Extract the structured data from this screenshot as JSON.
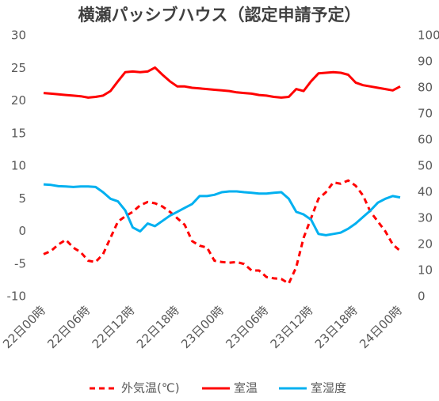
{
  "chart_data": {
    "type": "line",
    "title": "横瀬パッシブハウス（認定申請予定）",
    "categories": [
      "22日00時",
      null,
      null,
      null,
      null,
      null,
      "22日06時",
      null,
      null,
      null,
      null,
      null,
      "22日12時",
      null,
      null,
      null,
      null,
      null,
      "22日18時",
      null,
      null,
      null,
      null,
      null,
      "23日00時",
      null,
      null,
      null,
      null,
      null,
      "23日06時",
      null,
      null,
      null,
      null,
      null,
      "23日12時",
      null,
      null,
      null,
      null,
      null,
      "23日18時",
      null,
      null,
      null,
      null,
      null,
      "24日00時"
    ],
    "series": [
      {
        "name": "外気温(℃)",
        "color": "#ff0000",
        "style": "dashed",
        "axis": "y",
        "values": [
          -3.5,
          -3,
          -2,
          -1.3,
          -2.5,
          -3.2,
          -4.5,
          -4.7,
          -3.5,
          -1,
          1.5,
          2.3,
          3,
          4,
          4.5,
          4.3,
          3.8,
          3,
          2,
          1,
          -1.5,
          -2.2,
          -2.5,
          -4.5,
          -4.7,
          -4.8,
          -4.7,
          -5,
          -6,
          -6,
          -7,
          -7.2,
          -7.3,
          -8,
          -5.5,
          -1,
          2,
          5,
          6,
          7.5,
          7.3,
          7.8,
          7,
          5.5,
          3,
          1.5,
          0,
          -2,
          -3
        ]
      },
      {
        "name": "室温",
        "color": "#ff0000",
        "style": "solid",
        "axis": "y",
        "values": [
          21.2,
          21.1,
          21,
          20.9,
          20.8,
          20.7,
          20.5,
          20.6,
          20.8,
          21.5,
          23,
          24.4,
          24.5,
          24.4,
          24.5,
          25.1,
          24,
          23,
          22.2,
          22.2,
          22,
          21.9,
          21.8,
          21.7,
          21.6,
          21.5,
          21.3,
          21.2,
          21.1,
          20.9,
          20.8,
          20.6,
          20.5,
          20.6,
          21.8,
          21.5,
          23,
          24.2,
          24.3,
          24.4,
          24.3,
          24,
          22.8,
          22.4,
          22.2,
          22,
          21.8,
          21.6,
          22.2
        ]
      },
      {
        "name": "室湿度",
        "color": "#00b0f0",
        "style": "solid",
        "axis": "y2",
        "values": [
          43,
          42.8,
          42.3,
          42.2,
          42,
          42.2,
          42.2,
          42,
          40,
          37.5,
          36.5,
          33,
          26.5,
          25,
          28,
          27,
          29,
          31,
          32.5,
          34,
          35.5,
          38.5,
          38.5,
          39,
          40,
          40.3,
          40.3,
          40,
          39.8,
          39.5,
          39.5,
          39.8,
          40,
          37.5,
          32.5,
          31.5,
          29.5,
          24,
          23.5,
          24,
          24.5,
          26,
          28,
          30.5,
          33,
          36,
          37.5,
          38.5,
          38
        ]
      }
    ],
    "ylim": [
      -10,
      30
    ],
    "yticks": [
      -10,
      -5,
      0,
      5,
      10,
      15,
      20,
      25,
      30
    ],
    "y2lim": [
      0,
      100
    ],
    "y2ticks": [
      0,
      10,
      20,
      30,
      40,
      50,
      60,
      70,
      80,
      90,
      100
    ],
    "legend": "bottom"
  }
}
